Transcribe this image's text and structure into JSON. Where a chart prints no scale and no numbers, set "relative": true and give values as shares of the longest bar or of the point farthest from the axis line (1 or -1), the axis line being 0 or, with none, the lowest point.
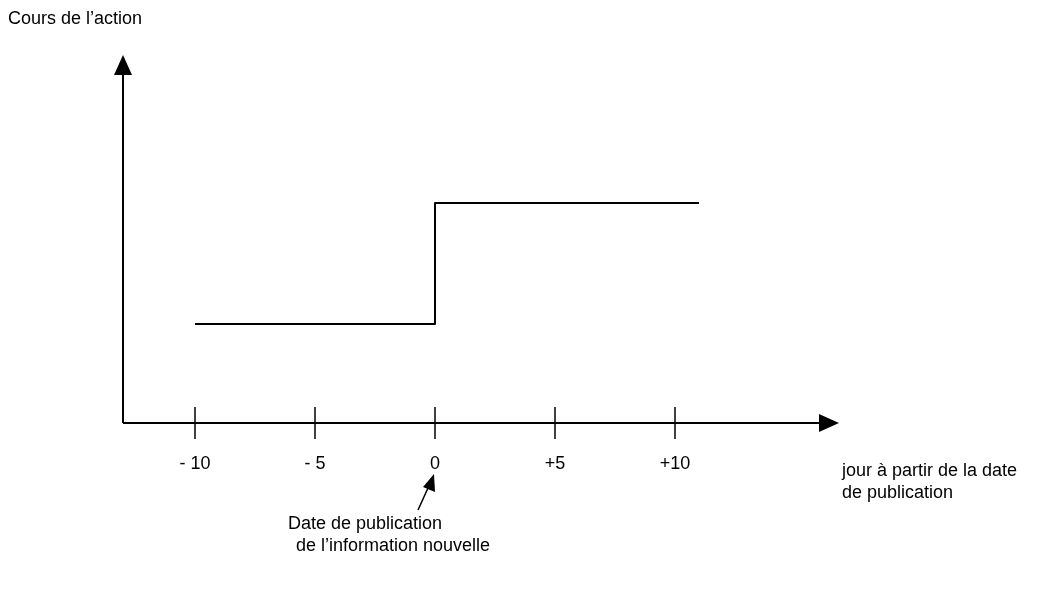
{
  "chart_data": {
    "type": "step",
    "relative": true,
    "xlabel": "jour à partir de la date de publication",
    "x": [
      -10,
      0,
      11
    ],
    "series": [
      {
        "color": "#000000",
        "values": [
          0.45,
          1,
          1
        ]
      }
    ],
    "xlim": [
      -13,
      16
    ],
    "xticks": [
      {
        "value": -10,
        "label": "- 10"
      },
      {
        "value": -5,
        "label": "- 5"
      },
      0,
      {
        "value": 5,
        "label": "+5"
      },
      {
        "value": 10,
        "label": "+10"
      }
    ],
    "annotations": [
      "Cours de l’action",
      "Date de publication\nde l’information nouvelle"
    ],
    "grid": false
  }
}
